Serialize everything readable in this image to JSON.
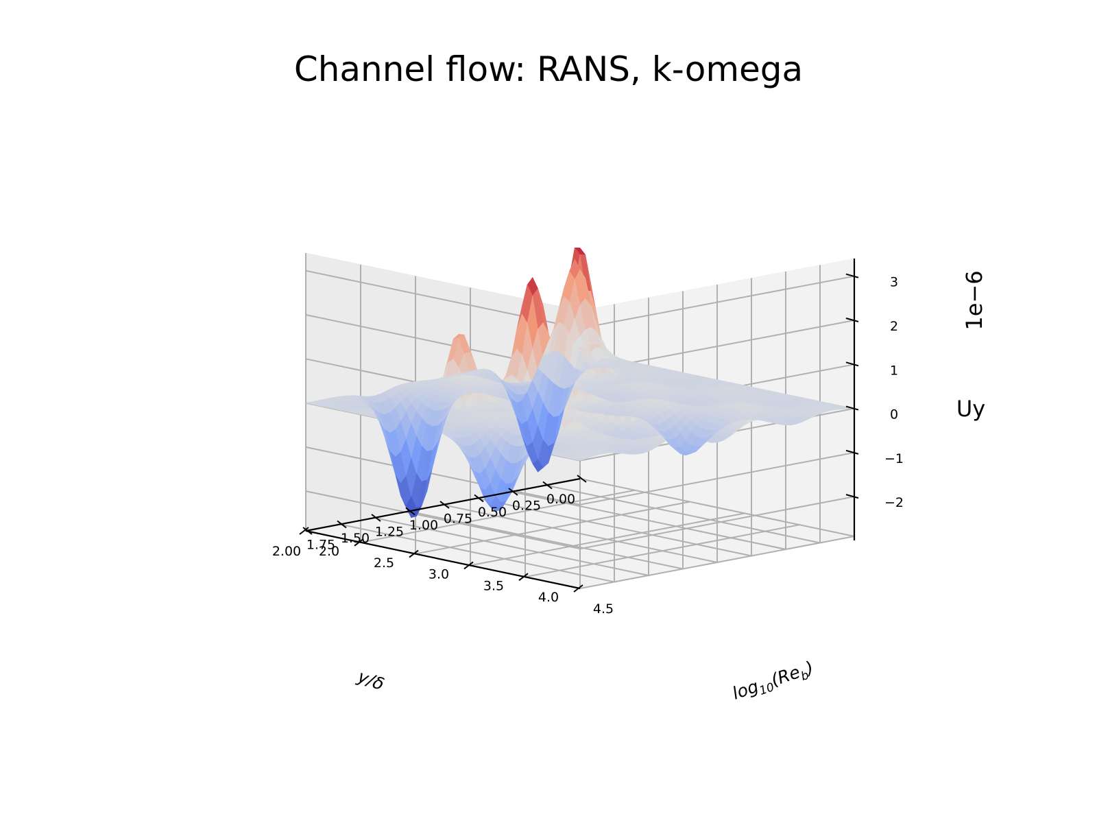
{
  "chart_data": {
    "type": "surface3d",
    "title": "Channel flow: RANS, k-omega",
    "xlabel": "y/δ",
    "ylabel": "log₁₀(Re_b)",
    "ylabel_main": "log",
    "ylabel_sub": "10",
    "ylabel_paren": "(Re",
    "ylabel_b": "b",
    "ylabel_close": ")",
    "zlabel": "Uy",
    "z_offset_text": "1e−6",
    "xlim": [
      0,
      2
    ],
    "ylim": [
      2,
      4.5
    ],
    "zlim": [
      -2.9,
      3.4
    ],
    "x_ticks": [
      "0.00",
      "0.25",
      "0.50",
      "0.75",
      "1.00",
      "1.25",
      "1.50",
      "1.75",
      "2.00"
    ],
    "x_tick_values": [
      0,
      0.25,
      0.5,
      0.75,
      1,
      1.25,
      1.5,
      1.75,
      2
    ],
    "y_ticks": [
      "2.0",
      "2.5",
      "3.0",
      "3.5",
      "4.0",
      "4.5"
    ],
    "y_tick_values": [
      2,
      2.5,
      3,
      3.5,
      4,
      4.5
    ],
    "z_ticks": [
      "−2",
      "−1",
      "0",
      "1",
      "2",
      "3"
    ],
    "z_tick_values": [
      -2,
      -1,
      0,
      1,
      2,
      3
    ],
    "colormap": "coolwarm",
    "grid": true,
    "surface_features": [
      {
        "x": 0.15,
        "y": 2.15,
        "z": 2.3,
        "kind": "peak"
      },
      {
        "x": 0.45,
        "y": 2.2,
        "z": -2.5,
        "kind": "trough"
      },
      {
        "x": 0.45,
        "y": 2.55,
        "z": 3.2,
        "kind": "peak"
      },
      {
        "x": 0.9,
        "y": 3.1,
        "z": 2.2,
        "kind": "peak"
      },
      {
        "x": 1.15,
        "y": 3.0,
        "z": 2.9,
        "kind": "peak"
      },
      {
        "x": 1.5,
        "y": 2.35,
        "z": -2.8,
        "kind": "trough"
      },
      {
        "x": 1.45,
        "y": 2.7,
        "z": 1.8,
        "kind": "peak"
      },
      {
        "x": 1.3,
        "y": 3.3,
        "z": 1.4,
        "kind": "peak"
      },
      {
        "x": 1.1,
        "y": 3.7,
        "z": 1.3,
        "kind": "peak"
      },
      {
        "x": 0.85,
        "y": 4.0,
        "z": -0.8,
        "kind": "trough"
      },
      {
        "x": 1.55,
        "y": 3.7,
        "z": 1.2,
        "kind": "peak"
      },
      {
        "x": 1.85,
        "y": 3.55,
        "z": -1.8,
        "kind": "trough"
      }
    ]
  }
}
